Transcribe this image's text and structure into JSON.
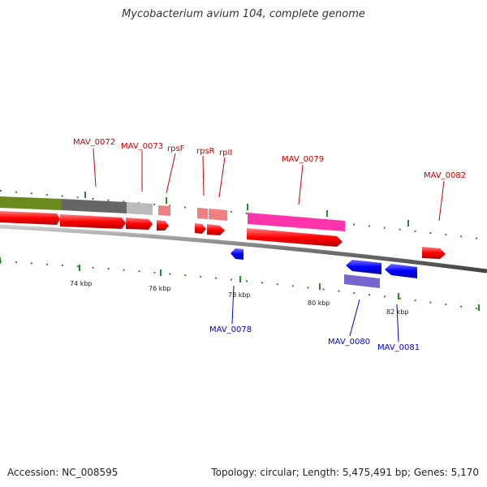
{
  "title": "Mycobacterium avium 104, complete genome",
  "footer": {
    "accession": "Accession: NC_008595",
    "summary": "Topology: circular; Length: 5,475,491 bp; Genes: 5,170"
  },
  "colors": {
    "forward_cds": "#ff0000",
    "reverse_cds": "#0000ff",
    "forward_label": "#cc0000",
    "reverse_label": "#0000cc",
    "backbone": "#888888",
    "ticks": "#338833"
  },
  "scale_ticks": [
    {
      "label": "74 kbp"
    },
    {
      "label": "76 kbp"
    },
    {
      "label": "78 kbp"
    },
    {
      "label": "80 kbp"
    },
    {
      "label": "82 kbp"
    }
  ],
  "gene_labels": [
    {
      "name": "MAV_0072",
      "strand": "forward"
    },
    {
      "name": "MAV_0073",
      "strand": "forward"
    },
    {
      "name": "rpsF",
      "strand": "forward"
    },
    {
      "name": "rpsR",
      "strand": "forward"
    },
    {
      "name": "rplI",
      "strand": "forward"
    },
    {
      "name": "MAV_0079",
      "strand": "forward"
    },
    {
      "name": "MAV_0082",
      "strand": "forward"
    },
    {
      "name": "MAV_0078",
      "strand": "reverse"
    },
    {
      "name": "MAV_0080",
      "strand": "reverse"
    },
    {
      "name": "MAV_0081",
      "strand": "reverse"
    }
  ]
}
